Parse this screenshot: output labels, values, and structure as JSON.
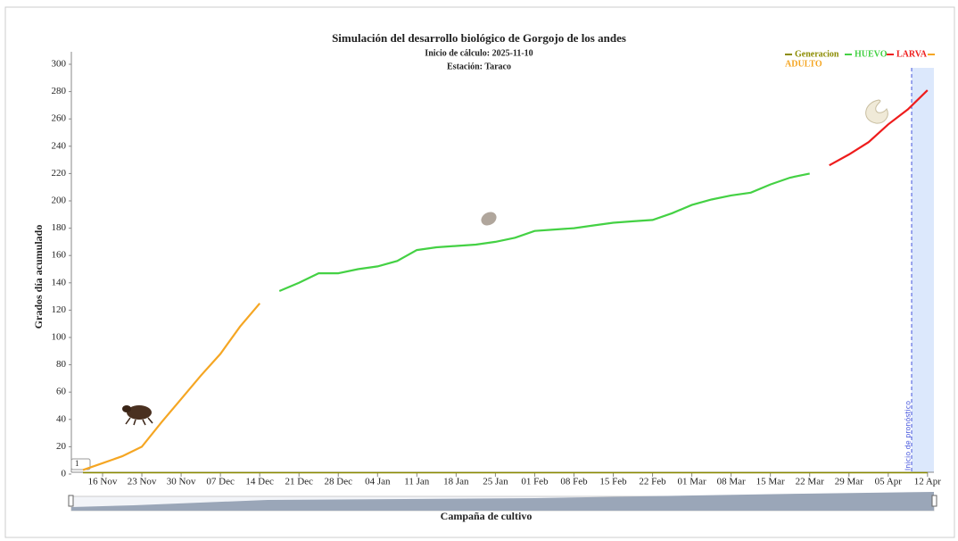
{
  "chart_data": {
    "type": "line",
    "title": "Simulación del desarrollo biológico de Gorgojo de los andes",
    "subtitle": [
      "Inicio de cálculo: 2025-11-10",
      "Estación: Taraco"
    ],
    "y_label": "Grados día acumulado",
    "x_label": "Campaña de cultivo",
    "forecast_label": "Inicio de pronóstico",
    "flag_label": "1",
    "categories": [
      null,
      "16 Nov",
      null,
      "23 Nov",
      null,
      "30 Nov",
      null,
      "07 Dec",
      null,
      "14 Dec",
      null,
      "21 Dec",
      null,
      "28 Dec",
      null,
      "04 Jan",
      null,
      "11 Jan",
      null,
      "18 Jan",
      null,
      "25 Jan",
      null,
      "01 Feb",
      null,
      "08 Feb",
      null,
      "15 Feb",
      null,
      "22 Feb",
      null,
      "01 Mar",
      null,
      "08 Mar",
      null,
      "15 Mar",
      null,
      "22 Mar",
      null,
      "29 Mar",
      null,
      "05 Apr",
      null,
      "12 Apr"
    ],
    "series": [
      {
        "name": "Generacion",
        "color": "#8c8c00",
        "values": [
          1,
          1,
          1,
          1,
          1,
          1,
          1,
          1,
          1,
          1,
          1,
          1,
          1,
          1,
          1,
          1,
          1,
          1,
          1,
          1,
          1,
          1,
          1,
          1,
          1,
          1,
          1,
          1,
          1,
          1,
          1,
          1,
          1,
          1,
          1,
          1,
          1,
          1,
          1,
          1,
          1,
          1,
          1,
          1
        ]
      },
      {
        "name": "HUEVO",
        "color": "#44d144",
        "values": [
          null,
          null,
          null,
          null,
          null,
          null,
          null,
          null,
          null,
          null,
          134,
          140,
          147,
          147,
          150,
          152,
          156,
          164,
          166,
          167,
          168,
          170,
          173,
          178,
          179,
          180,
          182,
          184,
          185,
          186,
          191,
          197,
          201,
          204,
          206,
          212,
          217,
          220,
          null,
          null,
          null,
          null,
          null,
          null
        ]
      },
      {
        "name": "LARVA",
        "color": "#ee1c1c",
        "values": [
          null,
          null,
          null,
          null,
          null,
          null,
          null,
          null,
          null,
          null,
          null,
          null,
          null,
          null,
          null,
          null,
          null,
          null,
          null,
          null,
          null,
          null,
          null,
          null,
          null,
          null,
          null,
          null,
          null,
          null,
          null,
          null,
          null,
          null,
          null,
          null,
          null,
          null,
          226,
          234,
          243,
          256,
          267,
          281
        ]
      },
      {
        "name": "ADULTO",
        "color": "#f5a623",
        "values": [
          3,
          8,
          13,
          20,
          38,
          55,
          72,
          88,
          108,
          125,
          null,
          null,
          null,
          null,
          null,
          null,
          null,
          null,
          null,
          null,
          null,
          null,
          null,
          null,
          null,
          null,
          null,
          null,
          null,
          null,
          null,
          null,
          null,
          null,
          null,
          null,
          null,
          null,
          null,
          null,
          null,
          null,
          null,
          null
        ]
      }
    ],
    "ylim": [
      0,
      300
    ],
    "yticks": [
      0,
      20,
      40,
      60,
      80,
      100,
      120,
      140,
      160,
      180,
      200,
      220,
      240,
      260,
      280,
      300
    ],
    "grid": false
  }
}
